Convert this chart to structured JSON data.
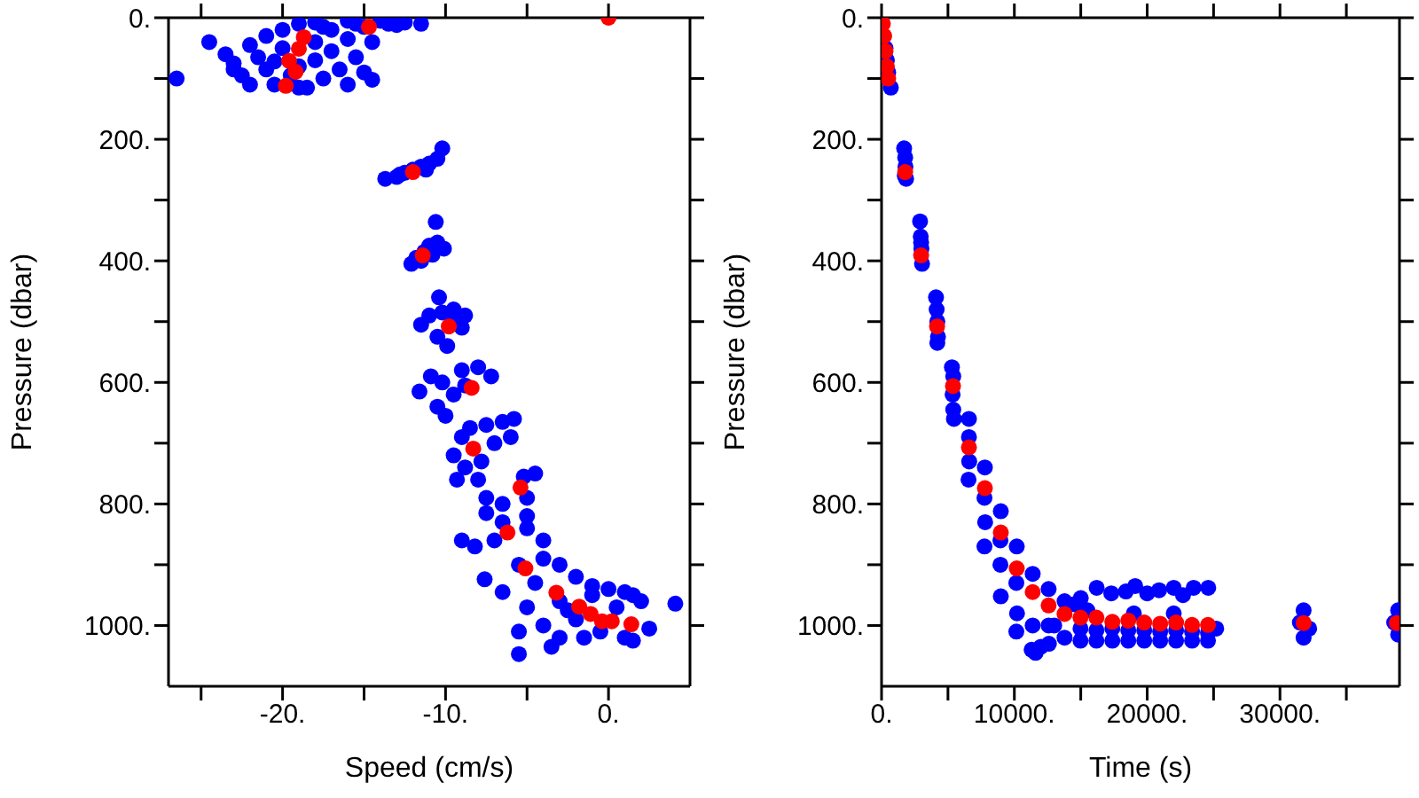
{
  "chart_data": [
    {
      "type": "scatter",
      "xlabel": "Speed (cm/s)",
      "ylabel": "Pressure (dbar)",
      "marker": "circle",
      "grid": false,
      "legend": false,
      "xlim": [
        -27,
        5
      ],
      "xticks": [
        {
          "value": -25,
          "label": null
        },
        {
          "value": -20,
          "label": "-20."
        },
        {
          "value": -15,
          "label": null
        },
        {
          "value": -10,
          "label": "-10."
        },
        {
          "value": -5,
          "label": null
        },
        {
          "value": 0,
          "label": "0."
        }
      ],
      "ylim": [
        1100,
        0
      ],
      "yticks": [
        {
          "value": 0,
          "label": "0."
        },
        {
          "value": 100,
          "label": null
        },
        {
          "value": 200,
          "label": "200."
        },
        {
          "value": 300,
          "label": null
        },
        {
          "value": 400,
          "label": "400."
        },
        {
          "value": 500,
          "label": null
        },
        {
          "value": 600,
          "label": "600."
        },
        {
          "value": 700,
          "label": null
        },
        {
          "value": 800,
          "label": "800."
        },
        {
          "value": 900,
          "label": null
        },
        {
          "value": 1000,
          "label": "1000."
        }
      ],
      "series": [
        {
          "color": "#0000ff",
          "x": [
            -26.5,
            -24.5,
            -23.5,
            -23,
            -22.5,
            -22,
            -22,
            -21.5,
            -21,
            -21,
            -20.5,
            -20,
            -20,
            -19.5,
            -19,
            -19,
            -18.5,
            -18,
            -18,
            -17.5,
            -17,
            -17,
            -16.5,
            -16,
            -16,
            -15.5,
            -15,
            -15,
            -14.5,
            -14,
            -13.5,
            -14.5,
            -12.5,
            -16,
            -18,
            -20.5,
            -23,
            -19,
            -11.5,
            -13,
            -15.5,
            -17.5,
            -13.7,
            -13,
            -12.5,
            -12,
            -11.5,
            -11,
            -10.5,
            -10.2,
            -12.8,
            -11.2,
            -12.1,
            -11.8,
            -11.3,
            -11,
            -10.5,
            -10.1,
            -10.6,
            -11.5,
            -10.8,
            -10.4,
            -11.5,
            -11,
            -10.2,
            -9.5,
            -8.8,
            -9,
            -10.5,
            -9.9,
            -9.6,
            -11.6,
            -10.9,
            -10.5,
            -10,
            -9.5,
            -9,
            -8,
            -7.2,
            -8.8,
            -10.2,
            -9.5,
            -9,
            -8.5,
            -7.5,
            -6.5,
            -5.8,
            -6,
            -7,
            -8.8,
            -7.8,
            -9.3,
            -5.2,
            -4.5,
            -8,
            -7.5,
            -6.5,
            -7.5,
            -5,
            -6.5,
            -5,
            -9,
            -8.2,
            -7,
            -5,
            -4,
            -4,
            -3,
            -5.5,
            -4.5,
            -2,
            -1,
            -3,
            -5,
            -5.5,
            -4,
            -2,
            -1,
            0,
            1,
            1.5,
            2,
            -0.5,
            1,
            2.5,
            1.5,
            -1.5,
            -3,
            -3.5,
            -5.5,
            -7.6,
            4.1,
            -2.5,
            0.5,
            -6.5
          ],
          "values": [
            100,
            40,
            60,
            75,
            95,
            45,
            110,
            65,
            30,
            85,
            110,
            50,
            20,
            95,
            10,
            80,
            115,
            40,
            70,
            100,
            20,
            55,
            85,
            35,
            110,
            65,
            15,
            90,
            40,
            5,
            10,
            102,
            8,
            5,
            8,
            72,
            85,
            115,
            10,
            12,
            10,
            15,
            265,
            262,
            255,
            250,
            245,
            240,
            232,
            215,
            258,
            250,
            405,
            395,
            385,
            375,
            370,
            380,
            336,
            400,
            390,
            460,
            505,
            490,
            485,
            480,
            490,
            510,
            525,
            540,
            500,
            615,
            590,
            640,
            655,
            620,
            580,
            575,
            590,
            605,
            600,
            720,
            690,
            675,
            670,
            665,
            660,
            690,
            700,
            740,
            730,
            760,
            755,
            750,
            760,
            790,
            800,
            815,
            790,
            830,
            820,
            860,
            870,
            860,
            840,
            860,
            890,
            900,
            900,
            930,
            920,
            935,
            960,
            970,
            1010,
            1000,
            990,
            950,
            940,
            945,
            950,
            960,
            1010,
            1020,
            1005,
            1025,
            1020,
            1020,
            1035,
            1047,
            924,
            964,
            975,
            970,
            945
          ]
        },
        {
          "color": "#ff0000",
          "x": [
            0,
            -14.7,
            -18.7,
            -19,
            -19.6,
            -19.2,
            -19.8,
            -12,
            -11.4,
            -9.8,
            -8.4,
            -8.3,
            -5.4,
            -6.2,
            -5.1,
            -3.2,
            -1.8,
            -1.1,
            -0.4,
            0.2,
            1.4
          ],
          "values": [
            0,
            15,
            32,
            51,
            71,
            89,
            112,
            254,
            391,
            508,
            609,
            709,
            773,
            847,
            906,
            946,
            969,
            981,
            993,
            993,
            998
          ]
        }
      ]
    },
    {
      "type": "scatter",
      "xlabel": "Time (s)",
      "ylabel": "Pressure (dbar)",
      "marker": "circle",
      "grid": false,
      "legend": false,
      "xlim": [
        0,
        39000
      ],
      "xticks": [
        {
          "value": 0,
          "label": "0."
        },
        {
          "value": 5000,
          "label": null
        },
        {
          "value": 10000,
          "label": "10000."
        },
        {
          "value": 15000,
          "label": null
        },
        {
          "value": 20000,
          "label": "20000."
        },
        {
          "value": 25000,
          "label": null
        },
        {
          "value": 30000,
          "label": "30000."
        },
        {
          "value": 35000,
          "label": null
        }
      ],
      "ylim": [
        1100,
        0
      ],
      "yticks": [
        {
          "value": 0,
          "label": "0."
        },
        {
          "value": 100,
          "label": null
        },
        {
          "value": 200,
          "label": "200."
        },
        {
          "value": 300,
          "label": null
        },
        {
          "value": 400,
          "label": "400."
        },
        {
          "value": 500,
          "label": null
        },
        {
          "value": 600,
          "label": "600."
        },
        {
          "value": 700,
          "label": null
        },
        {
          "value": 800,
          "label": "800."
        },
        {
          "value": 900,
          "label": null
        },
        {
          "value": 1000,
          "label": "1000."
        }
      ],
      "series": [
        {
          "color": "#0000ff",
          "x": [
            300,
            400,
            500,
            700,
            1700,
            1780,
            1800,
            1850,
            1750,
            2900,
            2950,
            3000,
            3050,
            2980,
            4100,
            4150,
            4200,
            4250,
            4200,
            5300,
            5400,
            5350,
            5400,
            5450,
            6580,
            6580,
            6600,
            6550,
            7780,
            7750,
            7800,
            7750,
            8980,
            8950,
            8950,
            8980,
            10180,
            10150,
            10200,
            10150,
            11380,
            11380,
            11300,
            11600,
            12000,
            12600,
            12580,
            12580,
            13000,
            16200,
            17300,
            18400,
            19100,
            20000,
            20900,
            22000,
            22700,
            23500,
            24600,
            13780,
            14500,
            15000,
            13780,
            14980,
            16180,
            17380,
            18580,
            19780,
            20980,
            22180,
            23380,
            24580,
            25200,
            14980,
            16180,
            17380,
            18580,
            19780,
            20980,
            22180,
            23380,
            24580,
            15500,
            19000,
            22000,
            31500,
            31780,
            31780,
            32200,
            38600,
            38900,
            38900
          ],
          "values": [
            50,
            70,
            90,
            115,
            215,
            230,
            245,
            265,
            260,
            335,
            360,
            380,
            405,
            370,
            460,
            480,
            500,
            525,
            535,
            575,
            590,
            620,
            645,
            660,
            660,
            690,
            730,
            760,
            740,
            790,
            830,
            870,
            812,
            860,
            900,
            952,
            870,
            930,
            980,
            1010,
            915,
            1000,
            1040,
            1045,
            1035,
            1030,
            940,
            1000,
            1000,
            938,
            947,
            944,
            935,
            947,
            942,
            938,
            950,
            938,
            938,
            960,
            965,
            955,
            1020,
            1025,
            1025,
            1025,
            1025,
            1025,
            1025,
            1025,
            1025,
            1025,
            1005,
            1005,
            1008,
            1005,
            1008,
            1008,
            1010,
            1008,
            1010,
            1012,
            975,
            980,
            980,
            995,
            975,
            1020,
            1005,
            995,
            975,
            1015
          ]
        },
        {
          "color": "#ff0000",
          "x": [
            100,
            200,
            300,
            400,
            500,
            1780,
            2980,
            4180,
            5380,
            6580,
            7780,
            8980,
            10180,
            11380,
            12580,
            13780,
            14980,
            16180,
            17380,
            18580,
            19780,
            20980,
            22180,
            23380,
            24580,
            31780,
            38800
          ],
          "values": [
            10,
            30,
            55,
            80,
            100,
            254,
            391,
            508,
            606,
            707,
            774,
            847,
            906,
            945,
            967,
            981,
            987,
            987,
            994,
            992,
            995,
            997,
            995,
            999,
            999,
            996,
            996
          ]
        }
      ]
    }
  ]
}
